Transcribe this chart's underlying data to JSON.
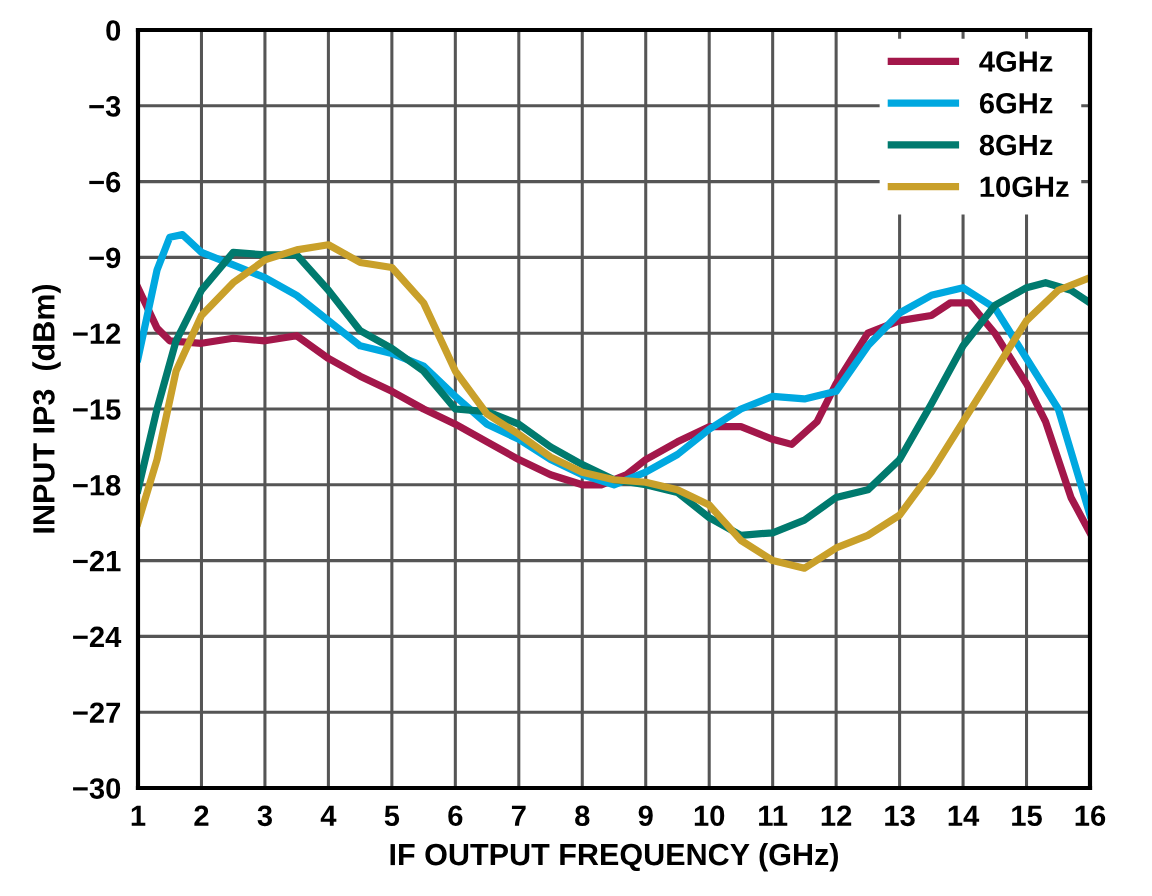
{
  "chart_data": {
    "type": "line",
    "xlabel": "IF OUTPUT FREQUENCY (GHz)",
    "ylabel": "INPUT IP3  (dBm)",
    "xlim": [
      1,
      16
    ],
    "xticks": [
      1,
      2,
      3,
      4,
      5,
      6,
      7,
      8,
      9,
      10,
      11,
      12,
      13,
      14,
      15,
      16
    ],
    "ylim": [
      -30,
      0
    ],
    "yticks": [
      {
        "value": -30,
        "label": "−30"
      },
      {
        "value": -27,
        "label": "−27"
      },
      {
        "value": -24,
        "label": "−24"
      },
      {
        "value": -21,
        "label": "−21"
      },
      {
        "value": -18,
        "label": "−18"
      },
      {
        "value": -15,
        "label": "−15"
      },
      {
        "value": -12,
        "label": "−12"
      },
      {
        "value": -9,
        "label": "−9"
      },
      {
        "value": -6,
        "label": "−6"
      },
      {
        "value": -3,
        "label": "−3"
      },
      0
    ],
    "grid": true,
    "legend": "top right",
    "marker": "none",
    "line_style": "solid",
    "series": [
      {
        "name": "4GHz",
        "color": "#a3174a",
        "x": [
          1,
          1.3,
          1.5,
          2,
          2.5,
          3,
          3.5,
          4,
          4.5,
          5,
          5.5,
          6,
          6.5,
          7,
          7.5,
          8,
          8.3,
          8.7,
          9,
          9.5,
          10,
          10.5,
          11,
          11.3,
          11.7,
          12,
          12.5,
          13,
          13.5,
          13.8,
          14.1,
          14.5,
          15,
          15.3,
          15.7,
          16
        ],
        "values": [
          -10.2,
          -11.8,
          -12.3,
          -12.4,
          -12.2,
          -12.3,
          -12.1,
          -13.0,
          -13.7,
          -14.3,
          -15.0,
          -15.6,
          -16.3,
          -17.0,
          -17.6,
          -18.0,
          -18.0,
          -17.6,
          -17.0,
          -16.3,
          -15.7,
          -15.7,
          -16.2,
          -16.4,
          -15.5,
          -14.0,
          -12.0,
          -11.5,
          -11.3,
          -10.8,
          -10.8,
          -12.0,
          -14.0,
          -15.5,
          -18.5,
          -19.9
        ]
      },
      {
        "name": "6GHz",
        "color": "#00a8e0",
        "x": [
          1,
          1.3,
          1.5,
          1.7,
          2,
          2.5,
          3,
          3.5,
          4,
          4.5,
          5,
          5.5,
          6,
          6.5,
          7,
          7.5,
          8,
          8.5,
          9,
          9.5,
          10,
          10.5,
          11,
          11.5,
          12,
          12.5,
          13,
          13.5,
          14,
          14.5,
          15,
          15.5,
          16
        ],
        "values": [
          -13,
          -9.5,
          -8.2,
          -8.1,
          -8.8,
          -9.3,
          -9.8,
          -10.5,
          -11.5,
          -12.5,
          -12.8,
          -13.3,
          -14.5,
          -15.6,
          -16.2,
          -17.0,
          -17.6,
          -18.0,
          -17.5,
          -16.8,
          -15.8,
          -15.0,
          -14.5,
          -14.6,
          -14.3,
          -12.5,
          -11.2,
          -10.5,
          -10.2,
          -11.0,
          -13.0,
          -15.0,
          -19.2
        ]
      },
      {
        "name": "8GHz",
        "color": "#007a6e",
        "x": [
          1,
          1.3,
          1.6,
          2,
          2.5,
          3,
          3.5,
          4,
          4.5,
          5,
          5.5,
          6,
          6.5,
          7,
          7.5,
          8,
          8.5,
          9,
          9.5,
          10,
          10.5,
          11,
          11.5,
          12,
          12.5,
          13,
          13.5,
          14,
          14.5,
          15,
          15.3,
          15.7,
          16
        ],
        "values": [
          -18.2,
          -15,
          -12.3,
          -10.3,
          -8.8,
          -8.9,
          -8.9,
          -10.3,
          -11.9,
          -12.6,
          -13.5,
          -15.0,
          -15.1,
          -15.6,
          -16.5,
          -17.2,
          -17.8,
          -18.0,
          -18.3,
          -19.3,
          -20.0,
          -19.9,
          -19.4,
          -18.5,
          -18.2,
          -17.0,
          -14.8,
          -12.5,
          -10.9,
          -10.2,
          -10.0,
          -10.3,
          -10.8
        ]
      },
      {
        "name": "10GHz",
        "color": "#c9a02a",
        "x": [
          1,
          1.3,
          1.6,
          2,
          2.5,
          3,
          3.5,
          4,
          4.5,
          5,
          5.5,
          6,
          6.5,
          7,
          7.5,
          8,
          8.5,
          9,
          9.5,
          10,
          10.5,
          11,
          11.5,
          12,
          12.5,
          13,
          13.5,
          14,
          14.5,
          15,
          15.5,
          16
        ],
        "values": [
          -19.5,
          -17.0,
          -13.5,
          -11.3,
          -10.0,
          -9.1,
          -8.7,
          -8.5,
          -9.2,
          -9.4,
          -10.8,
          -13.5,
          -15.2,
          -16.0,
          -16.9,
          -17.5,
          -17.8,
          -17.9,
          -18.2,
          -18.8,
          -20.2,
          -21.0,
          -21.3,
          -20.5,
          -20.0,
          -19.2,
          -17.5,
          -15.5,
          -13.5,
          -11.5,
          -10.3,
          -9.8
        ]
      }
    ]
  }
}
